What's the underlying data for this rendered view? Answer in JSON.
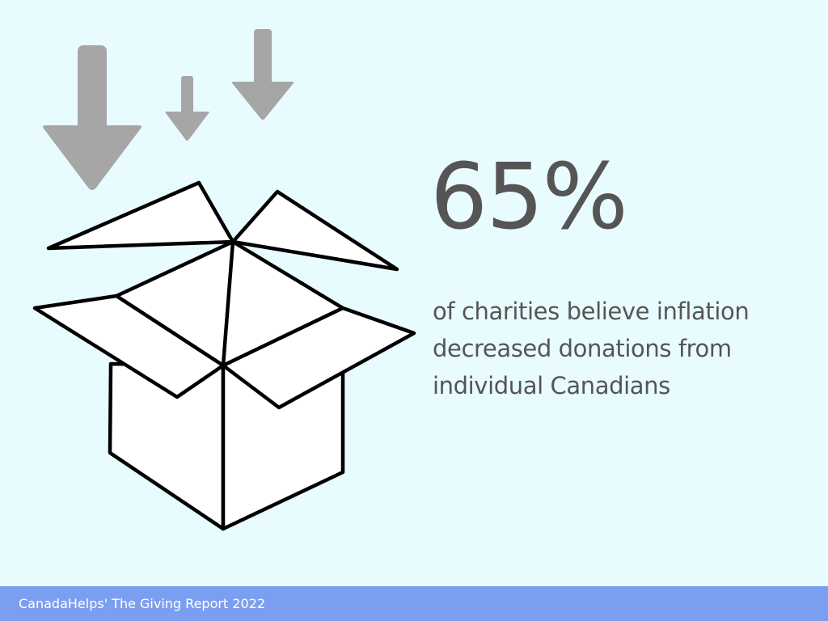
{
  "stat": {
    "value": "65%",
    "description_lines": [
      "of charities believe inflation",
      "decreased donations from",
      "individual Canadians"
    ]
  },
  "footer": {
    "source": "CanadaHelps' The Giving Report 2022"
  },
  "icons": {
    "arrows": "down-arrow-icon",
    "box": "open-box-icon"
  },
  "colors": {
    "background": "#e8fbfe",
    "text": "#555555",
    "arrow": "#a6a6a6",
    "footer": "#7b9ff0",
    "footer_text": "#ffffff"
  }
}
